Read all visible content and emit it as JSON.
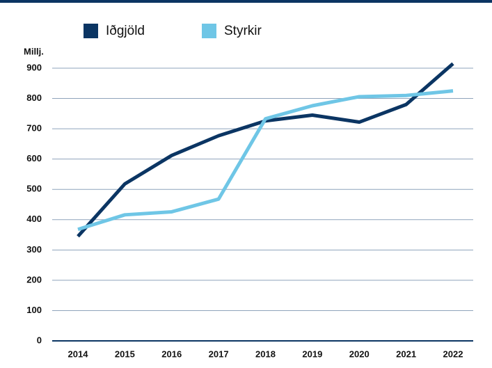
{
  "chart_data": {
    "type": "line",
    "y_axis_label": "Millj.",
    "categories": [
      "2014",
      "2015",
      "2016",
      "2017",
      "2018",
      "2019",
      "2020",
      "2021",
      "2022"
    ],
    "series": [
      {
        "name": "Iðgjöld",
        "color": "#0b3563",
        "values": [
          345,
          518,
          612,
          677,
          726,
          745,
          722,
          780,
          915
        ]
      },
      {
        "name": "Styrkir",
        "color": "#6fc6e6",
        "values": [
          368,
          416,
          426,
          468,
          733,
          776,
          806,
          810,
          825
        ]
      }
    ],
    "ylim": [
      0,
      900
    ],
    "yticks": [
      0,
      100,
      200,
      300,
      400,
      500,
      600,
      700,
      800,
      900
    ],
    "grid": true
  }
}
